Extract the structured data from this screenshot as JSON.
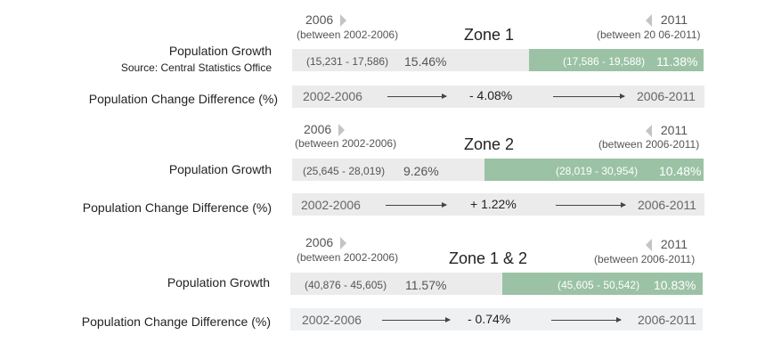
{
  "chart_data": {
    "type": "table",
    "panels": [
      {
        "title": "Zone 1",
        "left_year": "2006",
        "left_sub": "(between 2002-2006)",
        "right_year": "2011",
        "right_sub": "(between 20 06-2011)",
        "growth_label": "Population Growth",
        "source": "Source: Central Statistics Office",
        "left_range": "(15,231 - 17,586)",
        "left_pct": "15.46%",
        "left_value": 15.46,
        "right_range": "(17,586 - 19,588)",
        "right_pct": "11.38%",
        "right_value": 11.38,
        "change_label": "Population Change Difference (%)",
        "period_left": "2002-2006",
        "diff": "- 4.08%",
        "diff_value": -4.08,
        "period_right": "2006-2011"
      },
      {
        "title": "Zone 2",
        "left_year": "2006",
        "left_sub": "(between 2002-2006)",
        "right_year": "2011",
        "right_sub": "(between 2006-2011)",
        "growth_label": "Population Growth",
        "source": "",
        "left_range": "(25,645 - 28,019)",
        "left_pct": "9.26%",
        "left_value": 9.26,
        "right_range": "(28,019 - 30,954)",
        "right_pct": "10.48%",
        "right_value": 10.48,
        "change_label": "Population Change Difference (%)",
        "period_left": "2002-2006",
        "diff": "+ 1.22%",
        "diff_value": 1.22,
        "period_right": "2006-2011"
      },
      {
        "title": "Zone 1 & 2",
        "left_year": "2006",
        "left_sub": "(between 2002-2006)",
        "right_year": "2011",
        "right_sub": "(between  2006-2011)",
        "growth_label": "Population Growth",
        "source": "",
        "left_range": "(40,876 - 45,605)",
        "left_pct": "11.57%",
        "left_value": 11.57,
        "right_range": "(45,605 - 50,542)",
        "right_pct": "10.83%",
        "right_value": 10.83,
        "change_label": "Population Change Difference (%)",
        "period_left": "2002-2006",
        "diff": "- 0.74%",
        "diff_value": -0.74,
        "period_right": "2006-2011"
      }
    ]
  },
  "colors": {
    "bar_grey": "#ebebeb",
    "bar_green": "#9bc2a5",
    "bar_light": "#eef0f2"
  },
  "icons": {
    "left_marker": "triangle-right-icon",
    "right_marker": "triangle-left-icon"
  }
}
